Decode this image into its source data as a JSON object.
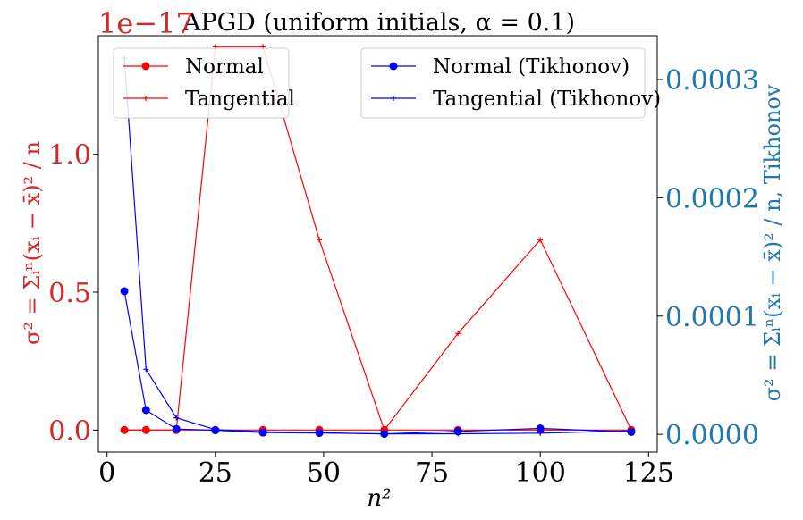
{
  "chart_data": {
    "type": "line",
    "title": "APGD (uniform initials, α = 0.1)",
    "xlabel": "n²",
    "ylabel_left": "σ² = Σᵢⁿ(xᵢ − x̄)² / n",
    "ylabel_right": "σ² = Σᵢⁿ(xᵢ − x̄)² / n, Tikhonov",
    "left_offset_text": "1e−17",
    "x": [
      4,
      9,
      16,
      25,
      36,
      49,
      64,
      81,
      100,
      121
    ],
    "xlim": [
      -2,
      127
    ],
    "xticks": [
      0,
      25,
      50,
      75,
      100,
      125
    ],
    "xtick_labels": [
      "0",
      "25",
      "50",
      "75",
      "100",
      "125"
    ],
    "left_axis": {
      "ylim": [
        -0.08,
        1.43
      ],
      "yticks": [
        0.0,
        0.5,
        1.0
      ],
      "ytick_labels": [
        "0.0",
        "0.5",
        "1.0"
      ],
      "color": "#d62728"
    },
    "right_axis": {
      "ylim": [
        -1.5e-05,
        0.000337
      ],
      "yticks": [
        0.0,
        0.0001,
        0.0002,
        0.0003
      ],
      "ytick_labels": [
        "0.0000",
        "0.0001",
        "0.0002",
        "0.0003"
      ],
      "color": "#1f77b4"
    },
    "series": [
      {
        "name": "Normal",
        "axis": "left",
        "color": "#ff0000",
        "marker": "circle",
        "values": [
          0,
          0,
          0,
          0,
          0,
          0,
          0,
          0,
          0,
          0
        ]
      },
      {
        "name": "Tangential",
        "axis": "left",
        "color": "#ff0000",
        "marker": "plus",
        "values": [
          0,
          0,
          0,
          1.39,
          1.39,
          0.69,
          0.0,
          0.35,
          0.69,
          0.0
        ]
      },
      {
        "name": "Normal (Tikhonov)",
        "axis": "right",
        "color": "#0000ff",
        "marker": "circle",
        "values": [
          0.000121,
          2.05e-05,
          4.5e-06,
          3.5e-06,
          1.5e-06,
          1.2e-06,
          4e-07,
          2.5e-06,
          5e-06,
          2e-06
        ]
      },
      {
        "name": "Tangential (Tikhonov)",
        "axis": "right",
        "color": "#0000ff",
        "marker": "plus",
        "values": [
          0.000318,
          5.5e-05,
          1.4e-05,
          4e-06,
          2.2e-06,
          1.5e-06,
          3e-07,
          5e-07,
          1e-06,
          3e-06
        ]
      }
    ],
    "legends": [
      {
        "position": "upper-left",
        "entries": [
          "Normal",
          "Tangential"
        ]
      },
      {
        "position": "upper-right",
        "entries": [
          "Normal (Tikhonov)",
          "Tangential (Tikhonov)"
        ]
      }
    ],
    "grid": false
  }
}
